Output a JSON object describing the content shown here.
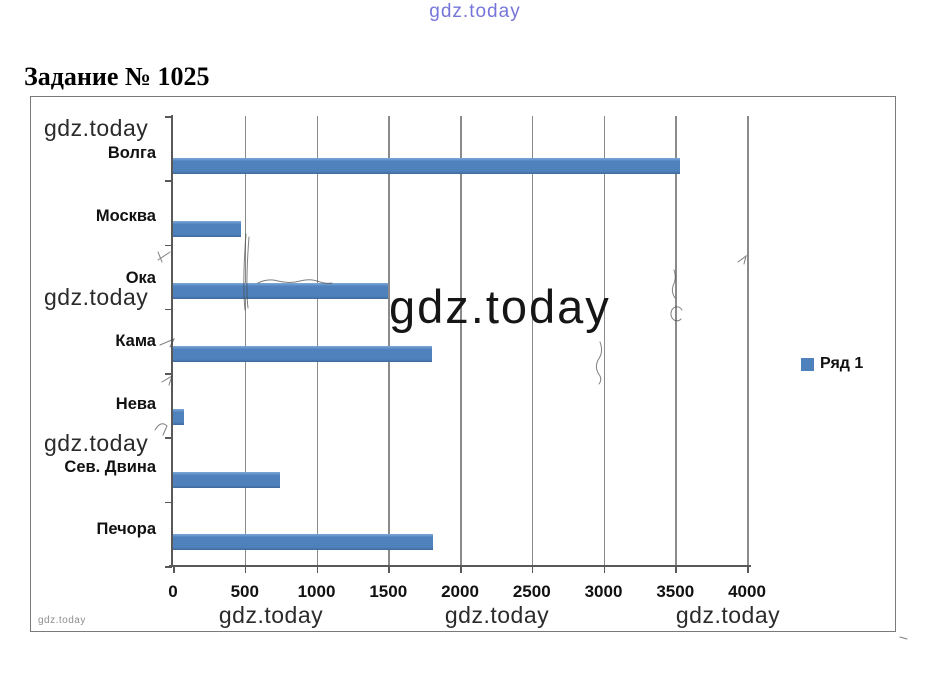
{
  "page": {
    "title": "Задание № 1025",
    "watermark_top": "gdz.today",
    "watermark_center": "gdz.today",
    "watermark_small": "gdz.today",
    "watermarks_left": [
      "gdz.today",
      "gdz.today",
      "gdz.today"
    ],
    "watermarks_bottom": [
      "gdz.today",
      "gdz.today",
      "gdz.today"
    ]
  },
  "chart_data": {
    "type": "bar",
    "orientation": "horizontal",
    "title": "",
    "categories": [
      "Волга",
      "Москва",
      "Ока",
      "Кама",
      "Нева",
      "Сев. Двина",
      "Печора"
    ],
    "values": [
      3530,
      473,
      1500,
      1805,
      74,
      744,
      1809
    ],
    "series_name": "Ряд 1",
    "xlim": [
      0,
      4000
    ],
    "xticks": [
      0,
      500,
      1000,
      1500,
      2000,
      2500,
      3000,
      3500,
      4000
    ],
    "bar_color": "#4f81bd",
    "grid": true,
    "gridline_color": "#8a8a8a",
    "axis_color": "#595959",
    "legend_position": "right"
  }
}
